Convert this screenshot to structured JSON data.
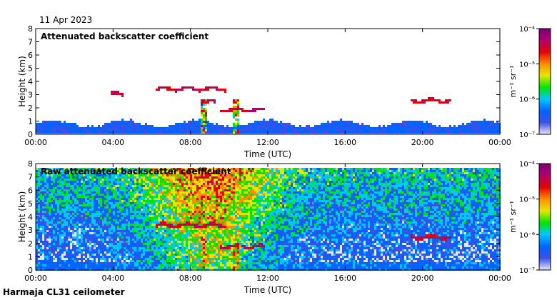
{
  "header": {
    "date": "11 Apr 2023"
  },
  "footer": {
    "site": "Harmaja CL31 ceilometer"
  },
  "colors": {
    "scale": [
      "#e6e6fa",
      "#3c50e6",
      "#0064ff",
      "#00c8ff",
      "#00e600",
      "#e6e600",
      "#ff8c00",
      "#e60000",
      "#b4006e",
      "#780078"
    ],
    "frame": "#000000",
    "background": "#ffffff"
  },
  "chart_data": [
    {
      "type": "heatmap",
      "title": "Attenuated backscatter coefficient",
      "xlabel": "Time (UTC)",
      "ylabel": "Height (km)",
      "xlim": [
        "00:00",
        "24:00"
      ],
      "ylim": [
        0,
        8
      ],
      "xticks": [
        "00:00",
        "04:00",
        "08:00",
        "12:00",
        "16:00",
        "20:00",
        "00:00"
      ],
      "yticks": [
        "0",
        "1",
        "2",
        "3",
        "4",
        "5",
        "6",
        "7",
        "8"
      ],
      "colorbar": {
        "label": "m⁻¹ sr⁻¹",
        "scale": "log",
        "ticks": [
          "10⁻⁷",
          "10⁻⁶",
          "10⁻⁵",
          "10⁻⁴"
        ],
        "range": [
          1e-07,
          0.0001
        ]
      },
      "features": [
        {
          "kind": "boundary layer",
          "t_start": 0,
          "t_end": 24,
          "z_top_km": 0.7
        },
        {
          "kind": "cloud",
          "t_start": 3.9,
          "t_end": 4.5,
          "z_km": 3.0
        },
        {
          "kind": "cloud",
          "t_start": 6.2,
          "t_end": 9.8,
          "z_km": 3.4
        },
        {
          "kind": "cloud",
          "t_start": 8.5,
          "t_end": 9.3,
          "z_km": 2.4
        },
        {
          "kind": "cloud",
          "t_start": 9.5,
          "t_end": 11.8,
          "z_km": 1.8
        },
        {
          "kind": "precipitation",
          "t_start": 8.5,
          "t_end": 8.8,
          "z_km": 0.4
        },
        {
          "kind": "precipitation",
          "t_start": 10.2,
          "t_end": 10.5,
          "z_km": 0.4
        },
        {
          "kind": "cloud",
          "t_start": 19.4,
          "t_end": 21.5,
          "z_km": 2.5
        }
      ]
    },
    {
      "type": "heatmap",
      "title": "Raw attenuated backscatter coefficient",
      "xlabel": "Time (UTC)",
      "ylabel": "Height (km)",
      "xlim": [
        "00:00",
        "24:00"
      ],
      "ylim": [
        0,
        8
      ],
      "xticks": [
        "00:00",
        "04:00",
        "08:00",
        "12:00",
        "16:00",
        "20:00",
        "00:00"
      ],
      "yticks": [
        "0",
        "1",
        "2",
        "3",
        "4",
        "5",
        "6",
        "7",
        "8"
      ],
      "colorbar": {
        "label": "m⁻¹ sr⁻¹",
        "scale": "log",
        "ticks": [
          "10⁻⁷",
          "10⁻⁶",
          "10⁻⁵",
          "10⁻⁴"
        ],
        "range": [
          1e-07,
          0.0001
        ]
      },
      "features": [
        {
          "kind": "noise",
          "t_start": 0,
          "t_end": 24,
          "z_top_km": 7.7
        },
        {
          "kind": "cloud",
          "t_start": 6.2,
          "t_end": 9.8,
          "z_km": 3.4
        },
        {
          "kind": "cloud",
          "t_start": 9.5,
          "t_end": 11.8,
          "z_km": 1.8
        },
        {
          "kind": "precipitation",
          "t_start": 8.5,
          "t_end": 8.8,
          "z_km": 0.4
        },
        {
          "kind": "precipitation",
          "t_start": 10.2,
          "t_end": 10.5,
          "z_km": 0.4
        },
        {
          "kind": "cloud",
          "t_start": 19.4,
          "t_end": 21.5,
          "z_km": 2.5
        }
      ]
    }
  ]
}
